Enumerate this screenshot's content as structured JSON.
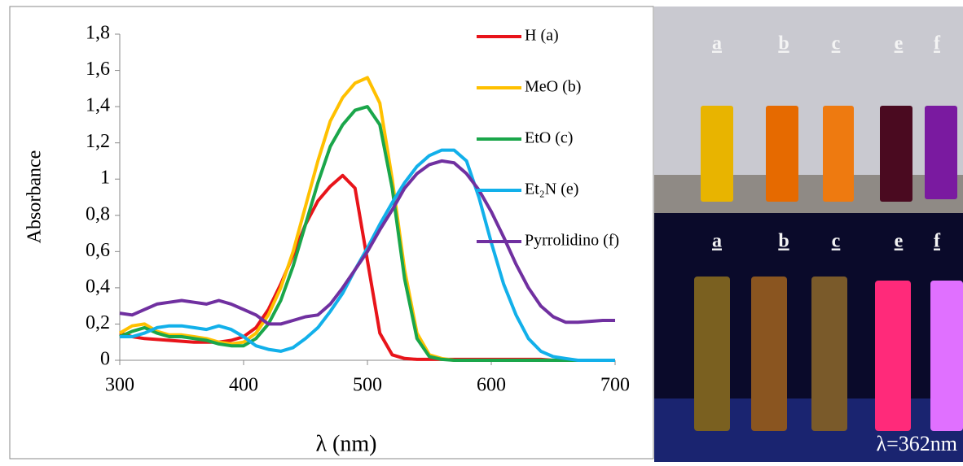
{
  "chart_data": {
    "type": "line",
    "x_label": "λ (nm)",
    "y_label": "Absorbance",
    "x": [
      300,
      310,
      320,
      330,
      340,
      350,
      360,
      370,
      380,
      390,
      400,
      410,
      420,
      430,
      440,
      450,
      460,
      470,
      480,
      490,
      500,
      510,
      520,
      530,
      540,
      550,
      560,
      570,
      580,
      590,
      600,
      610,
      620,
      630,
      640,
      650,
      660,
      670,
      680,
      690,
      700
    ],
    "series": [
      {
        "name": "H (a)",
        "color": "#e8141a",
        "values": [
          0.15,
          0.13,
          0.12,
          0.115,
          0.11,
          0.105,
          0.1,
          0.1,
          0.1,
          0.11,
          0.13,
          0.18,
          0.28,
          0.42,
          0.58,
          0.75,
          0.88,
          0.96,
          1.02,
          0.95,
          0.55,
          0.15,
          0.03,
          0.01,
          0.005,
          0.005,
          0.005,
          0.005,
          0.005,
          0.005,
          0.005,
          0.005,
          0.005,
          0.005,
          0.005,
          0,
          0,
          0,
          0,
          0,
          0
        ]
      },
      {
        "name": "MeO (b)",
        "color": "#ffc000",
        "values": [
          0.15,
          0.19,
          0.2,
          0.16,
          0.14,
          0.14,
          0.13,
          0.12,
          0.1,
          0.09,
          0.1,
          0.15,
          0.25,
          0.4,
          0.6,
          0.85,
          1.1,
          1.32,
          1.45,
          1.53,
          1.56,
          1.42,
          1.0,
          0.5,
          0.15,
          0.03,
          0.01,
          0,
          0,
          0,
          0,
          0,
          0,
          0,
          0,
          0,
          0,
          0,
          0,
          0,
          0
        ]
      },
      {
        "name": "EtO (c)",
        "color": "#1aa64a",
        "values": [
          0.13,
          0.16,
          0.18,
          0.15,
          0.13,
          0.13,
          0.12,
          0.11,
          0.09,
          0.08,
          0.08,
          0.12,
          0.2,
          0.33,
          0.52,
          0.75,
          0.98,
          1.18,
          1.3,
          1.38,
          1.4,
          1.3,
          0.95,
          0.45,
          0.12,
          0.02,
          0.005,
          0,
          0,
          0,
          0,
          0,
          0,
          0,
          0,
          0,
          0,
          0,
          0,
          0,
          0
        ]
      },
      {
        "name": "Et₂N (e)",
        "color": "#12b0ea",
        "values": [
          0.13,
          0.13,
          0.15,
          0.18,
          0.19,
          0.19,
          0.18,
          0.17,
          0.19,
          0.17,
          0.13,
          0.08,
          0.06,
          0.05,
          0.07,
          0.12,
          0.18,
          0.27,
          0.37,
          0.5,
          0.62,
          0.75,
          0.87,
          0.98,
          1.07,
          1.13,
          1.16,
          1.16,
          1.1,
          0.9,
          0.65,
          0.42,
          0.25,
          0.12,
          0.05,
          0.02,
          0.01,
          0,
          0,
          0,
          0
        ]
      },
      {
        "name": "Pyrrolidino (f)",
        "color": "#7030a0",
        "values": [
          0.26,
          0.25,
          0.28,
          0.31,
          0.32,
          0.33,
          0.32,
          0.31,
          0.33,
          0.31,
          0.28,
          0.25,
          0.2,
          0.2,
          0.22,
          0.24,
          0.25,
          0.31,
          0.4,
          0.5,
          0.6,
          0.72,
          0.83,
          0.95,
          1.03,
          1.08,
          1.1,
          1.09,
          1.03,
          0.94,
          0.82,
          0.68,
          0.53,
          0.4,
          0.3,
          0.24,
          0.21,
          0.21,
          0.215,
          0.22,
          0.22
        ]
      }
    ],
    "xlim": [
      300,
      700
    ],
    "xticks": [
      300,
      400,
      500,
      600,
      700
    ],
    "ylim": [
      0,
      1.8
    ],
    "yticks": [
      0,
      {
        "value": 0.2,
        "label": "0,2"
      },
      {
        "value": 0.4,
        "label": "0,4"
      },
      {
        "value": 0.6,
        "label": "0,6"
      },
      {
        "value": 0.8,
        "label": "0,8"
      },
      1,
      {
        "value": 1.2,
        "label": "1,2"
      },
      {
        "value": 1.4,
        "label": "1,4"
      },
      {
        "value": 1.6,
        "label": "1,6"
      },
      {
        "value": 1.8,
        "label": "1,8"
      }
    ],
    "grid": false
  },
  "photos": {
    "top_labels": [
      "a",
      "b",
      "c",
      "e",
      "f"
    ],
    "bottom_labels": [
      "a",
      "b",
      "c",
      "e",
      "f"
    ],
    "caption": "λ=362nm"
  }
}
